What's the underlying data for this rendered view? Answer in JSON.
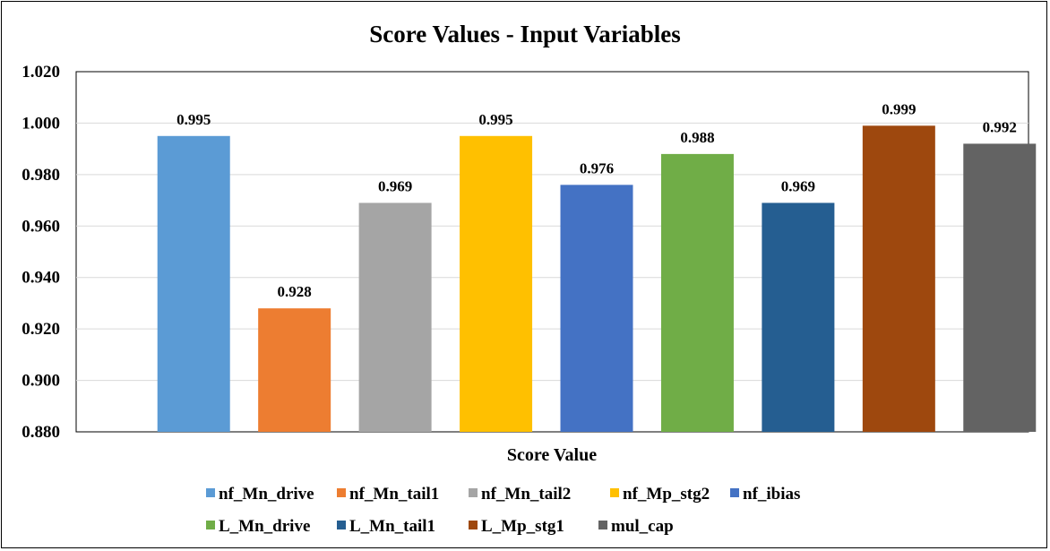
{
  "chart_data": {
    "type": "bar",
    "title": "Score Values - Input Variables",
    "xlabel": "Score Value",
    "ylabel": "",
    "ylim": [
      0.88,
      1.02
    ],
    "yticks": [
      "0.880",
      "0.900",
      "0.920",
      "0.940",
      "0.960",
      "0.980",
      "1.000",
      "1.020"
    ],
    "grid": true,
    "legend_position": "bottom",
    "series": [
      {
        "name": "nf_Mn_drive",
        "value": 0.995,
        "label": "0.995",
        "color": "#5B9BD5"
      },
      {
        "name": "nf_Mn_tail1",
        "value": 0.928,
        "label": "0.928",
        "color": "#ED7D31"
      },
      {
        "name": "nf_Mn_tail2",
        "value": 0.969,
        "label": "0.969",
        "color": "#A5A5A5"
      },
      {
        "name": "nf_Mp_stg2",
        "value": 0.995,
        "label": "0.995",
        "color": "#FFC000"
      },
      {
        "name": "nf_ibias",
        "value": 0.976,
        "label": "0.976",
        "color": "#4472C4"
      },
      {
        "name": "L_Mn_drive",
        "value": 0.988,
        "label": "0.988",
        "color": "#70AD47"
      },
      {
        "name": "L_Mn_tail1",
        "value": 0.969,
        "label": "0.969",
        "color": "#255E91"
      },
      {
        "name": "L_Mp_stg1",
        "value": 0.999,
        "label": "0.999",
        "color": "#9E480E"
      },
      {
        "name": "mul_cap",
        "value": 0.992,
        "label": "0.992",
        "color": "#636363"
      }
    ]
  }
}
